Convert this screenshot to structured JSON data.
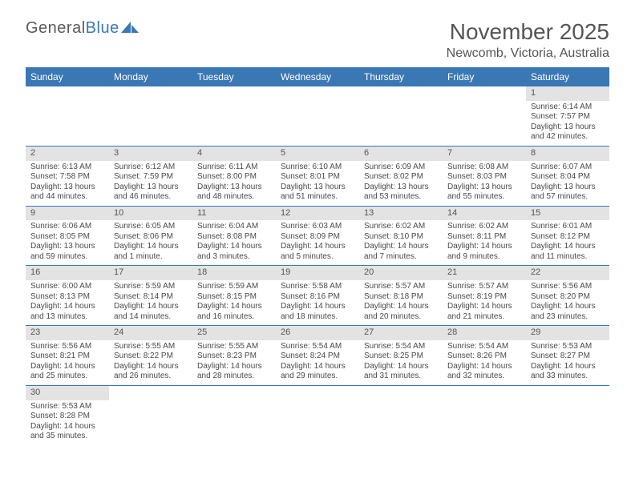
{
  "logo": {
    "textA": "General",
    "textB": "Blue",
    "sail_color": "#3a77b5"
  },
  "title": "November 2025",
  "location": "Newcomb, Victoria, Australia",
  "colors": {
    "header_bg": "#3a77b5",
    "header_fg": "#ffffff",
    "daynum_bg": "#e3e3e3",
    "cell_border": "#3a77b5",
    "text": "#4a4a4a"
  },
  "day_headers": [
    "Sunday",
    "Monday",
    "Tuesday",
    "Wednesday",
    "Thursday",
    "Friday",
    "Saturday"
  ],
  "weeks": [
    [
      {
        "empty": true
      },
      {
        "empty": true
      },
      {
        "empty": true
      },
      {
        "empty": true
      },
      {
        "empty": true
      },
      {
        "empty": true
      },
      {
        "n": "1",
        "sunrise": "Sunrise: 6:14 AM",
        "sunset": "Sunset: 7:57 PM",
        "day1": "Daylight: 13 hours",
        "day2": "and 42 minutes."
      }
    ],
    [
      {
        "n": "2",
        "sunrise": "Sunrise: 6:13 AM",
        "sunset": "Sunset: 7:58 PM",
        "day1": "Daylight: 13 hours",
        "day2": "and 44 minutes."
      },
      {
        "n": "3",
        "sunrise": "Sunrise: 6:12 AM",
        "sunset": "Sunset: 7:59 PM",
        "day1": "Daylight: 13 hours",
        "day2": "and 46 minutes."
      },
      {
        "n": "4",
        "sunrise": "Sunrise: 6:11 AM",
        "sunset": "Sunset: 8:00 PM",
        "day1": "Daylight: 13 hours",
        "day2": "and 48 minutes."
      },
      {
        "n": "5",
        "sunrise": "Sunrise: 6:10 AM",
        "sunset": "Sunset: 8:01 PM",
        "day1": "Daylight: 13 hours",
        "day2": "and 51 minutes."
      },
      {
        "n": "6",
        "sunrise": "Sunrise: 6:09 AM",
        "sunset": "Sunset: 8:02 PM",
        "day1": "Daylight: 13 hours",
        "day2": "and 53 minutes."
      },
      {
        "n": "7",
        "sunrise": "Sunrise: 6:08 AM",
        "sunset": "Sunset: 8:03 PM",
        "day1": "Daylight: 13 hours",
        "day2": "and 55 minutes."
      },
      {
        "n": "8",
        "sunrise": "Sunrise: 6:07 AM",
        "sunset": "Sunset: 8:04 PM",
        "day1": "Daylight: 13 hours",
        "day2": "and 57 minutes."
      }
    ],
    [
      {
        "n": "9",
        "sunrise": "Sunrise: 6:06 AM",
        "sunset": "Sunset: 8:05 PM",
        "day1": "Daylight: 13 hours",
        "day2": "and 59 minutes."
      },
      {
        "n": "10",
        "sunrise": "Sunrise: 6:05 AM",
        "sunset": "Sunset: 8:06 PM",
        "day1": "Daylight: 14 hours",
        "day2": "and 1 minute."
      },
      {
        "n": "11",
        "sunrise": "Sunrise: 6:04 AM",
        "sunset": "Sunset: 8:08 PM",
        "day1": "Daylight: 14 hours",
        "day2": "and 3 minutes."
      },
      {
        "n": "12",
        "sunrise": "Sunrise: 6:03 AM",
        "sunset": "Sunset: 8:09 PM",
        "day1": "Daylight: 14 hours",
        "day2": "and 5 minutes."
      },
      {
        "n": "13",
        "sunrise": "Sunrise: 6:02 AM",
        "sunset": "Sunset: 8:10 PM",
        "day1": "Daylight: 14 hours",
        "day2": "and 7 minutes."
      },
      {
        "n": "14",
        "sunrise": "Sunrise: 6:02 AM",
        "sunset": "Sunset: 8:11 PM",
        "day1": "Daylight: 14 hours",
        "day2": "and 9 minutes."
      },
      {
        "n": "15",
        "sunrise": "Sunrise: 6:01 AM",
        "sunset": "Sunset: 8:12 PM",
        "day1": "Daylight: 14 hours",
        "day2": "and 11 minutes."
      }
    ],
    [
      {
        "n": "16",
        "sunrise": "Sunrise: 6:00 AM",
        "sunset": "Sunset: 8:13 PM",
        "day1": "Daylight: 14 hours",
        "day2": "and 13 minutes."
      },
      {
        "n": "17",
        "sunrise": "Sunrise: 5:59 AM",
        "sunset": "Sunset: 8:14 PM",
        "day1": "Daylight: 14 hours",
        "day2": "and 14 minutes."
      },
      {
        "n": "18",
        "sunrise": "Sunrise: 5:59 AM",
        "sunset": "Sunset: 8:15 PM",
        "day1": "Daylight: 14 hours",
        "day2": "and 16 minutes."
      },
      {
        "n": "19",
        "sunrise": "Sunrise: 5:58 AM",
        "sunset": "Sunset: 8:16 PM",
        "day1": "Daylight: 14 hours",
        "day2": "and 18 minutes."
      },
      {
        "n": "20",
        "sunrise": "Sunrise: 5:57 AM",
        "sunset": "Sunset: 8:18 PM",
        "day1": "Daylight: 14 hours",
        "day2": "and 20 minutes."
      },
      {
        "n": "21",
        "sunrise": "Sunrise: 5:57 AM",
        "sunset": "Sunset: 8:19 PM",
        "day1": "Daylight: 14 hours",
        "day2": "and 21 minutes."
      },
      {
        "n": "22",
        "sunrise": "Sunrise: 5:56 AM",
        "sunset": "Sunset: 8:20 PM",
        "day1": "Daylight: 14 hours",
        "day2": "and 23 minutes."
      }
    ],
    [
      {
        "n": "23",
        "sunrise": "Sunrise: 5:56 AM",
        "sunset": "Sunset: 8:21 PM",
        "day1": "Daylight: 14 hours",
        "day2": "and 25 minutes."
      },
      {
        "n": "24",
        "sunrise": "Sunrise: 5:55 AM",
        "sunset": "Sunset: 8:22 PM",
        "day1": "Daylight: 14 hours",
        "day2": "and 26 minutes."
      },
      {
        "n": "25",
        "sunrise": "Sunrise: 5:55 AM",
        "sunset": "Sunset: 8:23 PM",
        "day1": "Daylight: 14 hours",
        "day2": "and 28 minutes."
      },
      {
        "n": "26",
        "sunrise": "Sunrise: 5:54 AM",
        "sunset": "Sunset: 8:24 PM",
        "day1": "Daylight: 14 hours",
        "day2": "and 29 minutes."
      },
      {
        "n": "27",
        "sunrise": "Sunrise: 5:54 AM",
        "sunset": "Sunset: 8:25 PM",
        "day1": "Daylight: 14 hours",
        "day2": "and 31 minutes."
      },
      {
        "n": "28",
        "sunrise": "Sunrise: 5:54 AM",
        "sunset": "Sunset: 8:26 PM",
        "day1": "Daylight: 14 hours",
        "day2": "and 32 minutes."
      },
      {
        "n": "29",
        "sunrise": "Sunrise: 5:53 AM",
        "sunset": "Sunset: 8:27 PM",
        "day1": "Daylight: 14 hours",
        "day2": "and 33 minutes."
      }
    ],
    [
      {
        "n": "30",
        "sunrise": "Sunrise: 5:53 AM",
        "sunset": "Sunset: 8:28 PM",
        "day1": "Daylight: 14 hours",
        "day2": "and 35 minutes."
      },
      {
        "empty": true
      },
      {
        "empty": true
      },
      {
        "empty": true
      },
      {
        "empty": true
      },
      {
        "empty": true
      },
      {
        "empty": true
      }
    ]
  ]
}
